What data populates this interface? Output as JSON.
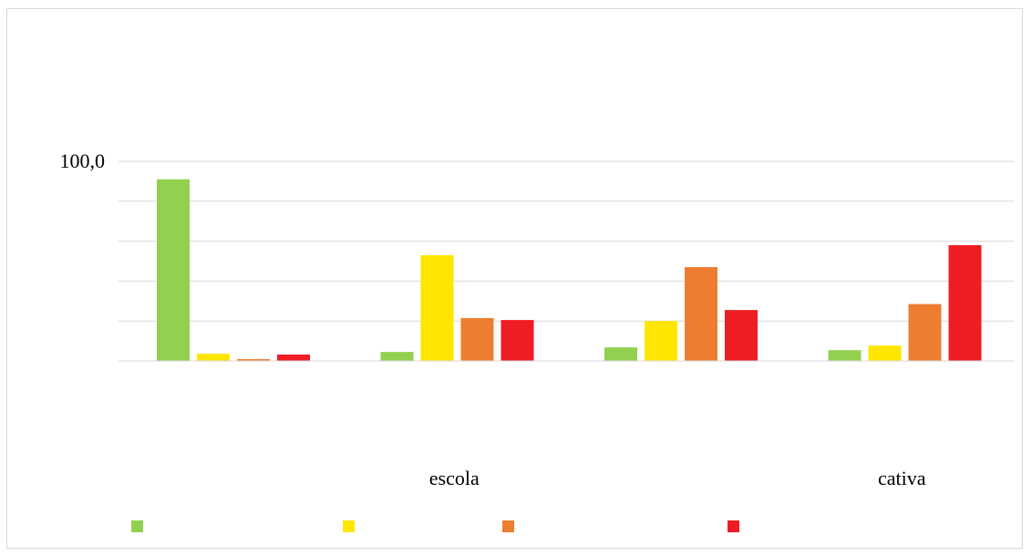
{
  "chart_data": {
    "type": "bar",
    "title": "",
    "xlabel": "",
    "ylabel": "",
    "ylim": [
      0,
      100
    ],
    "y_tick_labels": [
      {
        "value": 100,
        "label": "100,0"
      }
    ],
    "categories": [
      "",
      "escola",
      "",
      "cativa"
    ],
    "series": [
      {
        "name": "",
        "color": "#92D050",
        "values": [
          91,
          4.5,
          6.8,
          5.4
        ]
      },
      {
        "name": "",
        "color": "#FFE600",
        "values": [
          3.6,
          53,
          20,
          7.7
        ]
      },
      {
        "name": "",
        "color": "#ED7D31",
        "values": [
          0.9,
          21.5,
          47,
          28.5
        ]
      },
      {
        "name": "",
        "color": "#EE1D23",
        "values": [
          3.2,
          20.5,
          25.5,
          58
        ]
      }
    ],
    "grid": true,
    "legend": "bottom"
  }
}
